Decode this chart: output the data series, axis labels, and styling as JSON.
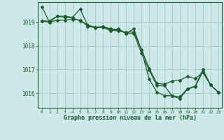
{
  "background_color": "#cce8e8",
  "grid_color": "#aacccc",
  "line_color": "#1a5c2a",
  "title": "Graphe pression niveau de la mer (hPa)",
  "ylim": [
    1015.4,
    1019.85
  ],
  "xlim": [
    -0.5,
    23.5
  ],
  "yticks": [
    1016,
    1017,
    1018,
    1019
  ],
  "xticks": [
    0,
    1,
    2,
    3,
    4,
    5,
    6,
    7,
    8,
    9,
    10,
    11,
    12,
    13,
    14,
    15,
    16,
    17,
    18,
    19,
    20,
    21,
    22,
    23
  ],
  "series": [
    [
      1019.65,
      1019.0,
      1019.25,
      1019.25,
      1019.2,
      1019.55,
      1018.85,
      1018.75,
      1018.8,
      1018.72,
      1018.68,
      1018.52,
      1018.72,
      1017.8,
      1016.6,
      1016.05,
      1015.9,
      1015.9,
      1015.85,
      1016.2,
      1016.3,
      1017.0,
      1016.35,
      1016.05
    ],
    [
      1019.05,
      1019.05,
      1019.25,
      1019.2,
      1019.18,
      1019.05,
      1018.88,
      1018.78,
      1018.82,
      1018.68,
      1018.62,
      1018.58,
      1018.58,
      1017.85,
      1017.05,
      1016.42,
      1016.38,
      1016.52,
      1016.55,
      1016.72,
      1016.62,
      1016.88,
      1016.35,
      1016.05
    ],
    [
      1019.05,
      1019.0,
      1019.08,
      1019.08,
      1019.12,
      1019.08,
      1018.82,
      1018.78,
      1018.78,
      1018.62,
      1018.72,
      1018.52,
      1018.52,
      1017.68,
      1016.98,
      1016.32,
      1016.32,
      1015.88,
      1015.78,
      1016.18,
      1016.28,
      1016.92,
      1016.35,
      1016.05
    ]
  ]
}
